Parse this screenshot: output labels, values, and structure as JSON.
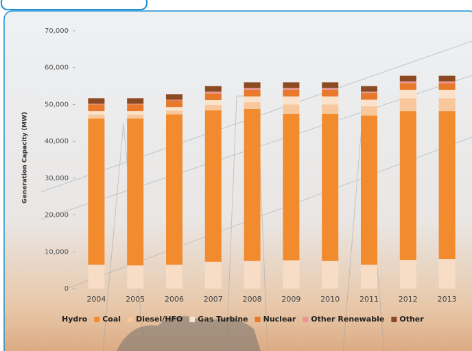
{
  "chart_data": {
    "type": "stacked_bar",
    "y_label": "Generation Capacity (MW)",
    "categories": [
      "2004",
      "2005",
      "2006",
      "2007",
      "2008",
      "2009",
      "2010",
      "2011",
      "2012",
      "2013"
    ],
    "series": [
      {
        "name": "Hydro",
        "color": "#f7dcc6",
        "values": [
          6500,
          6300,
          6500,
          7300,
          7500,
          7700,
          7500,
          6500,
          7800,
          8000
        ]
      },
      {
        "name": "Coal",
        "color": "#f28a2e",
        "values": [
          39700,
          39900,
          40800,
          41100,
          41300,
          39800,
          40000,
          40500,
          40400,
          40200
        ]
      },
      {
        "name": "Diesel/HFO",
        "color": "#f8c89c",
        "values": [
          1000,
          1000,
          1000,
          1500,
          1800,
          2500,
          2500,
          2500,
          3500,
          3500
        ]
      },
      {
        "name": "Gas Turbine",
        "color": "#fbe2cb",
        "values": [
          1000,
          1000,
          1000,
          1300,
          1600,
          2200,
          2200,
          1800,
          2300,
          2300
        ]
      },
      {
        "name": "Nuclear",
        "color": "#e8782a",
        "values": [
          1800,
          1800,
          1800,
          1800,
          1800,
          1800,
          1800,
          1800,
          1800,
          1800
        ]
      },
      {
        "name": "Other Renewable",
        "color": "#e99595",
        "values": [
          200,
          200,
          200,
          500,
          500,
          500,
          500,
          400,
          500,
          500
        ]
      },
      {
        "name": "Other",
        "color": "#8c4a22",
        "values": [
          1500,
          1500,
          1500,
          1500,
          1500,
          1500,
          1500,
          1500,
          1500,
          1500
        ]
      }
    ],
    "ylim": [
      0,
      70000
    ],
    "yticks": [
      0,
      {
        "value": 10000,
        "label": "10,000"
      },
      {
        "value": 20000,
        "label": "20,000"
      },
      {
        "value": 30000,
        "label": "30,000"
      },
      {
        "value": 40000,
        "label": "40,000"
      },
      {
        "value": 50000,
        "label": "50,000"
      },
      {
        "value": 60000,
        "label": "60,000"
      },
      {
        "value": 70000,
        "label": "70,000"
      }
    ]
  }
}
